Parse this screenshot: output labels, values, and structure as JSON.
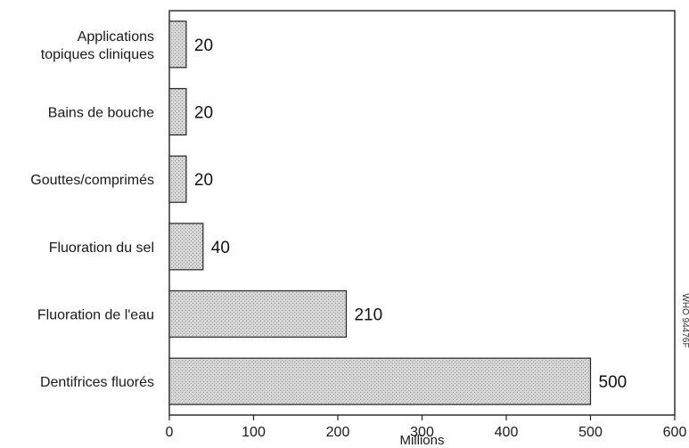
{
  "chart_data": {
    "type": "bar",
    "orientation": "horizontal",
    "categories": [
      [
        "Applications",
        "topiques cliniques"
      ],
      [
        "Bains de bouche"
      ],
      [
        "Gouttes/comprimés"
      ],
      [
        "Fluoration du sel"
      ],
      [
        "Fluoration de l'eau"
      ],
      [
        "Dentifrices fluorés"
      ]
    ],
    "values": [
      20,
      20,
      20,
      40,
      210,
      500
    ],
    "value_labels": [
      "20",
      "20",
      "20",
      "40",
      "210",
      "500"
    ],
    "xlabel": "Millions",
    "xlim": [
      0,
      600
    ],
    "xticks": [
      0,
      100,
      200,
      300,
      400,
      500,
      600
    ],
    "grid": false,
    "bar_color": "#c9c9c9",
    "side_label": "WHO 94476F"
  }
}
